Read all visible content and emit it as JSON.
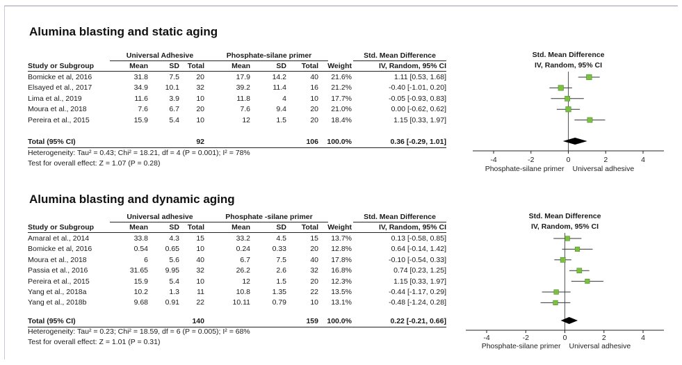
{
  "chart_data": [
    {
      "type": "table",
      "title": "Alumina blasting and static aging",
      "group1_label": "Universal Adhesive",
      "group2_label": "Phosphate-silane primer",
      "smd_header": "Std. Mean Difference",
      "method_header": "IV, Random, 95% CI",
      "columns": [
        "Study or Subgroup",
        "Mean",
        "SD",
        "Total",
        "Mean",
        "SD",
        "Total",
        "Weight",
        "IV, Random, 95% CI"
      ],
      "studies": [
        {
          "study": "Bomicke et al, 2016",
          "m1": "31.8",
          "sd1": "7.5",
          "n1": "20",
          "m2": "17.9",
          "sd2": "14.2",
          "n2": "40",
          "weight": "21.6%",
          "ci": "1.11 [0.53, 1.68]",
          "est": 1.11,
          "lo": 0.53,
          "hi": 1.68
        },
        {
          "study": "Elsayed et al., 2017",
          "m1": "34.9",
          "sd1": "10.1",
          "n1": "32",
          "m2": "39.2",
          "sd2": "11.4",
          "n2": "16",
          "weight": "21.2%",
          "ci": "-0.40 [-1.01, 0.20]",
          "est": -0.4,
          "lo": -1.01,
          "hi": 0.2
        },
        {
          "study": "Lima et al., 2019",
          "m1": "11.6",
          "sd1": "3.9",
          "n1": "10",
          "m2": "11.8",
          "sd2": "4",
          "n2": "10",
          "weight": "17.7%",
          "ci": "-0.05 [-0.93, 0.83]",
          "est": -0.05,
          "lo": -0.93,
          "hi": 0.83
        },
        {
          "study": "Moura et al., 2018",
          "m1": "7.6",
          "sd1": "6.7",
          "n1": "20",
          "m2": "7.6",
          "sd2": "9.4",
          "n2": "20",
          "weight": "21.0%",
          "ci": "0.00 [-0.62, 0.62]",
          "est": 0.0,
          "lo": -0.62,
          "hi": 0.62
        },
        {
          "study": "Pereira et al., 2015",
          "m1": "15.9",
          "sd1": "5.4",
          "n1": "10",
          "m2": "12",
          "sd2": "1.5",
          "n2": "20",
          "weight": "18.4%",
          "ci": "1.15 [0.33, 1.97]",
          "est": 1.15,
          "lo": 0.33,
          "hi": 1.97
        }
      ],
      "total": {
        "label": "Total (95% CI)",
        "n1": "92",
        "n2": "106",
        "weight": "100.0%",
        "ci": "0.36 [-0.29, 1.01]",
        "est": 0.36,
        "lo": -0.29,
        "hi": 1.01
      },
      "heterogeneity": "Heterogeneity: Tau² = 0.43; Chi² = 18.21, df = 4 (P = 0.001); I² = 78%",
      "overall_effect": "Test for overall effect: Z = 1.07 (P = 0.28)",
      "xaxis": {
        "ticks": [
          -4,
          -2,
          0,
          2,
          4
        ],
        "tick_labels": [
          "-4",
          "-2",
          "0",
          "2",
          "4"
        ],
        "xlim": [
          -4,
          4
        ]
      },
      "favours_left": "Phosphate-silane primer",
      "favours_right": "Universal adhesive",
      "marker_color": "#7ac142"
    },
    {
      "type": "table",
      "title": "Alumina blasting and dynamic aging",
      "group1_label": "Universal adhesive",
      "group2_label": "Phosphate -silane primer",
      "smd_header": "Std. Mean Difference",
      "method_header": "IV, Random, 95% CI",
      "columns": [
        "Study or Subgroup",
        "Mean",
        "SD",
        "Total",
        "Mean",
        "SD",
        "Total",
        "Weight",
        "IV, Random, 95% CI"
      ],
      "studies": [
        {
          "study": "Amaral et al., 2014",
          "m1": "33.8",
          "sd1": "4.3",
          "n1": "15",
          "m2": "33.2",
          "sd2": "4.5",
          "n2": "15",
          "weight": "13.7%",
          "ci": "0.13 [-0.58, 0.85]",
          "est": 0.13,
          "lo": -0.58,
          "hi": 0.85
        },
        {
          "study": "Bomicke et al, 2016",
          "m1": "0.54",
          "sd1": "0.65",
          "n1": "10",
          "m2": "0.24",
          "sd2": "0.33",
          "n2": "20",
          "weight": "12.8%",
          "ci": "0.64 [-0.14, 1.42]",
          "est": 0.64,
          "lo": -0.14,
          "hi": 1.42
        },
        {
          "study": "Moura et al., 2018",
          "m1": "6",
          "sd1": "5.6",
          "n1": "40",
          "m2": "6.7",
          "sd2": "7.5",
          "n2": "40",
          "weight": "17.8%",
          "ci": "-0.10 [-0.54, 0.33]",
          "est": -0.1,
          "lo": -0.54,
          "hi": 0.33
        },
        {
          "study": "Passia et al., 2016",
          "m1": "31.65",
          "sd1": "9.95",
          "n1": "32",
          "m2": "26.2",
          "sd2": "2.6",
          "n2": "32",
          "weight": "16.8%",
          "ci": "0.74 [0.23, 1.25]",
          "est": 0.74,
          "lo": 0.23,
          "hi": 1.25
        },
        {
          "study": "Pereira et al., 2015",
          "m1": "15.9",
          "sd1": "5.4",
          "n1": "10",
          "m2": "12",
          "sd2": "1.5",
          "n2": "20",
          "weight": "12.3%",
          "ci": "1.15 [0.33, 1.97]",
          "est": 1.15,
          "lo": 0.33,
          "hi": 1.97
        },
        {
          "study": "Yang et al., 2018a",
          "m1": "10.2",
          "sd1": "1.3",
          "n1": "11",
          "m2": "10.8",
          "sd2": "1.35",
          "n2": "22",
          "weight": "13.5%",
          "ci": "-0.44 [-1.17, 0.29]",
          "est": -0.44,
          "lo": -1.17,
          "hi": 0.29
        },
        {
          "study": "Yang et al., 2018b",
          "m1": "9.68",
          "sd1": "0.91",
          "n1": "22",
          "m2": "10.11",
          "sd2": "0.79",
          "n2": "10",
          "weight": "13.1%",
          "ci": "-0.48 [-1.24, 0.28]",
          "est": -0.48,
          "lo": -1.24,
          "hi": 0.28
        }
      ],
      "total": {
        "label": "Total (95% CI)",
        "n1": "140",
        "n2": "159",
        "weight": "100.0%",
        "ci": "0.22 [-0.21, 0.66]",
        "est": 0.22,
        "lo": -0.21,
        "hi": 0.66
      },
      "heterogeneity": "Heterogeneity: Tau² = 0.23; Chi² = 18.59, df = 6 (P = 0.005); I² = 68%",
      "overall_effect": "Test for overall effect: Z = 1.01 (P = 0.31)",
      "xaxis": {
        "ticks": [
          -4,
          -2,
          0,
          2,
          4
        ],
        "tick_labels": [
          "-4",
          "-2",
          "0",
          "2",
          "4"
        ],
        "xlim": [
          -4,
          4
        ]
      },
      "favours_left": "Phosphate-silane primer",
      "favours_right": "Universal adhesive",
      "marker_color": "#7ac142"
    }
  ]
}
